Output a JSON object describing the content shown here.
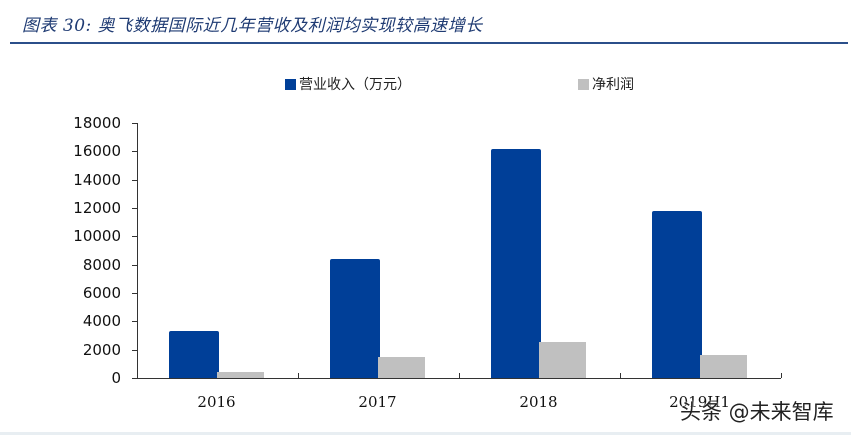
{
  "header": {
    "title": "图表 30:  奥飞数据国际近几年营收及利润均实现较高速增长"
  },
  "legend": {
    "items": [
      {
        "label": "营业收入（万元）",
        "color": "#003f98"
      },
      {
        "label": "净利润",
        "color": "#c0c0c0"
      }
    ]
  },
  "axes": {
    "y_ticks": [
      "0",
      "2000",
      "4000",
      "6000",
      "8000",
      "10000",
      "12000",
      "14000",
      "16000",
      "18000"
    ],
    "x_labels": [
      "2016",
      "2017",
      "2018",
      "2019H1"
    ]
  },
  "watermark": "头条 @未来智库",
  "chart_data": {
    "type": "bar",
    "title": "奥飞数据国际近几年营收及利润均实现较高速增长",
    "categories": [
      "2016",
      "2017",
      "2018",
      "2019H1"
    ],
    "series": [
      {
        "name": "营业收入（万元）",
        "color": "#003f98",
        "values": [
          3340,
          8430,
          16160,
          11800
        ]
      },
      {
        "name": "净利润",
        "color": "#c0c0c0",
        "values": [
          450,
          1510,
          2520,
          1600
        ]
      }
    ],
    "xlabel": "",
    "ylabel": "",
    "ylim": [
      0,
      18000
    ],
    "yticks": [
      0,
      2000,
      4000,
      6000,
      8000,
      10000,
      12000,
      14000,
      16000,
      18000
    ],
    "grid": false,
    "legend_position": "top"
  }
}
